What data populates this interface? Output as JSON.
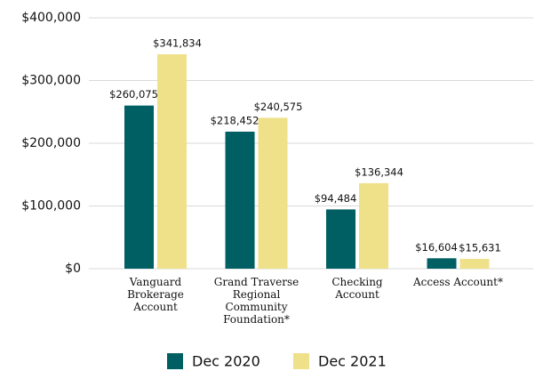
{
  "chart_data": {
    "type": "bar",
    "categories": [
      "Vanguard\nBrokerage\nAccount",
      "Grand Traverse\nRegional\nCommunity\nFoundation*",
      "Checking\nAccount",
      "Access Account*"
    ],
    "series": [
      {
        "name": "Dec 2020",
        "color": "#005f62",
        "values": [
          260075,
          218452,
          94484,
          16604
        ],
        "value_labels": [
          "$260,075",
          "$218,452",
          "$94,484",
          "$16,604"
        ]
      },
      {
        "name": "Dec 2021",
        "color": "#efe08a",
        "values": [
          341834,
          240575,
          136344,
          15631
        ],
        "value_labels": [
          "$341,834",
          "$240,575",
          "$136,344",
          "$15,631"
        ]
      }
    ],
    "ylim": [
      0,
      400000
    ],
    "yticks": [
      {
        "value": 0,
        "label": "$0"
      },
      {
        "value": 100000,
        "label": "$100,000"
      },
      {
        "value": 200000,
        "label": "$200,000"
      },
      {
        "value": 300000,
        "label": "$300,000"
      },
      {
        "value": 400000,
        "label": "$400,000"
      }
    ],
    "grid": true,
    "legend": "bottom"
  }
}
